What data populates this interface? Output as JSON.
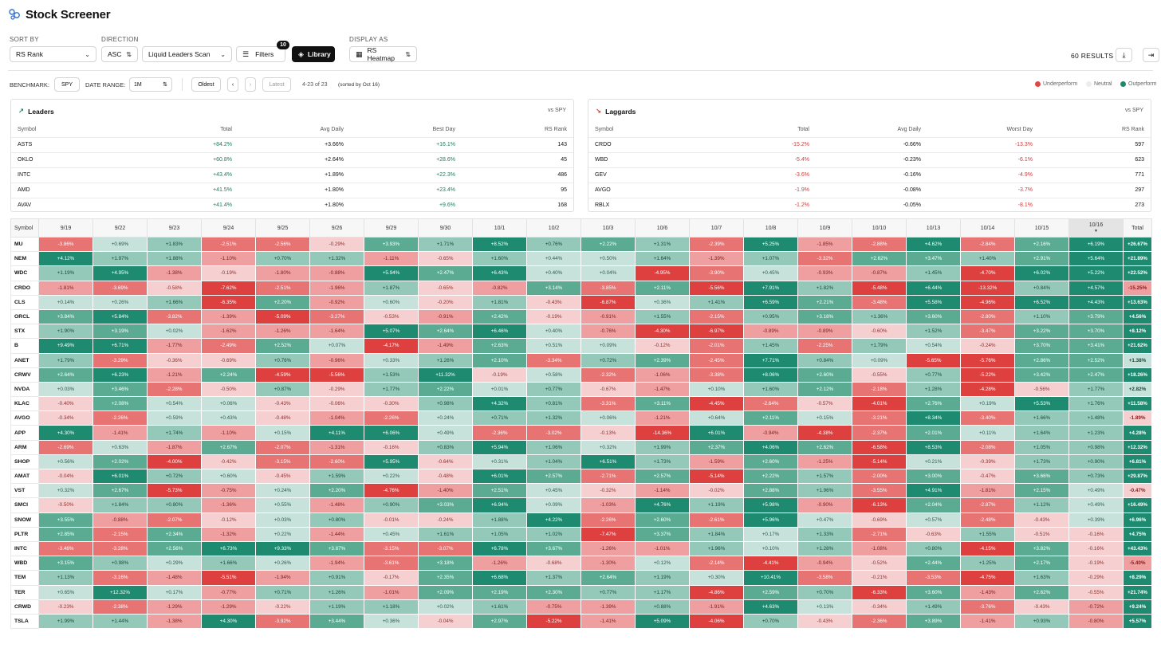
{
  "app": {
    "title": "Stock Screener"
  },
  "controls": {
    "sort_by_label": "SORT BY",
    "sort_by_value": "RS Rank",
    "direction_label": "DIRECTION",
    "direction_value": "ASC",
    "scan_value": "Liquid Leaders Scan",
    "filters_label": "Filters",
    "filters_count": "10",
    "library_label": "Library",
    "display_as_label": "DISPLAY AS",
    "display_as_value": "RS Heatmap",
    "results": "60 RESULTS"
  },
  "subbar": {
    "benchmark_label": "BENCHMARK:",
    "benchmark_value": "SPY",
    "date_range_label": "DATE RANGE:",
    "date_range_value": "1M",
    "oldest": "Oldest",
    "latest": "Latest",
    "range_text": "4-23 of 23",
    "sorted_text": "(sorted by Oct 16)"
  },
  "legend": {
    "under": "Underperform",
    "neutral": "Neutral",
    "out": "Outperform",
    "colors": {
      "under": "#e04848",
      "neutral": "#ececec",
      "out": "#1d8a6e"
    }
  },
  "leaders": {
    "title": "Leaders",
    "vs": "vs SPY",
    "columns": [
      "Symbol",
      "Total",
      "Avg Daily",
      "Best Day",
      "RS Rank"
    ],
    "rows": [
      [
        "ASTS",
        "+84.2%",
        "+3.66%",
        "+16.1%",
        "143"
      ],
      [
        "OKLO",
        "+60.8%",
        "+2.64%",
        "+28.6%",
        "45"
      ],
      [
        "INTC",
        "+43.4%",
        "+1.89%",
        "+22.3%",
        "486"
      ],
      [
        "AMD",
        "+41.5%",
        "+1.80%",
        "+23.4%",
        "95"
      ],
      [
        "AVAV",
        "+41.4%",
        "+1.80%",
        "+9.6%",
        "168"
      ]
    ]
  },
  "laggards": {
    "title": "Laggards",
    "vs": "vs SPY",
    "columns": [
      "Symbol",
      "Total",
      "Avg Daily",
      "Worst Day",
      "RS Rank"
    ],
    "rows": [
      [
        "CRDO",
        "-15.2%",
        "-0.66%",
        "-13.3%",
        "597"
      ],
      [
        "WBD",
        "-5.4%",
        "-0.23%",
        "-6.1%",
        "623"
      ],
      [
        "GEV",
        "-3.6%",
        "-0.16%",
        "-4.9%",
        "771"
      ],
      [
        "AVGO",
        "-1.9%",
        "-0.08%",
        "-3.7%",
        "297"
      ],
      [
        "RBLX",
        "-1.2%",
        "-0.05%",
        "-8.1%",
        "273"
      ]
    ]
  },
  "heatmap": {
    "symbol_header": "Symbol",
    "total_header": "Total",
    "dates": [
      "9/19",
      "9/22",
      "9/23",
      "9/24",
      "9/25",
      "9/26",
      "9/29",
      "9/30",
      "10/1",
      "10/2",
      "10/3",
      "10/6",
      "10/7",
      "10/8",
      "10/9",
      "10/10",
      "10/13",
      "10/14",
      "10/15",
      "10/16"
    ],
    "selected_date": "10/16",
    "rows": [
      {
        "sym": "MU",
        "vals": [
          "-3.86%",
          "+0.69%",
          "+1.83%",
          "-2.51%",
          "-2.56%",
          "-0.29%",
          "+3.93%",
          "+1.71%",
          "+8.52%",
          "+0.76%",
          "+2.22%",
          "+1.31%",
          "-2.39%",
          "+5.25%",
          "-1.85%",
          "-2.88%",
          "+4.62%",
          "-2.84%",
          "+2.16%",
          "+6.19%"
        ],
        "total": "+26.67%"
      },
      {
        "sym": "NEM",
        "vals": [
          "+4.12%",
          "+1.97%",
          "+1.88%",
          "-1.10%",
          "+0.70%",
          "+1.32%",
          "-1.11%",
          "-0.65%",
          "+1.60%",
          "+0.44%",
          "+0.50%",
          "+1.64%",
          "-1.39%",
          "+1.07%",
          "-3.32%",
          "+2.62%",
          "+3.47%",
          "+1.40%",
          "+2.91%",
          "+5.64%"
        ],
        "total": "+21.89%"
      },
      {
        "sym": "WDC",
        "vals": [
          "+1.19%",
          "+4.95%",
          "-1.38%",
          "-0.19%",
          "-1.80%",
          "-0.88%",
          "+5.94%",
          "+2.47%",
          "+6.43%",
          "+0.40%",
          "+0.04%",
          "-4.95%",
          "-3.90%",
          "+0.45%",
          "-0.93%",
          "-0.87%",
          "+1.45%",
          "-4.70%",
          "+6.02%",
          "+5.22%"
        ],
        "total": "+22.52%"
      },
      {
        "sym": "CRDO",
        "vals": [
          "-1.81%",
          "-3.69%",
          "-0.58%",
          "-7.62%",
          "-2.51%",
          "-1.96%",
          "+1.87%",
          "-0.65%",
          "-0.82%",
          "+3.14%",
          "-3.85%",
          "+2.11%",
          "-5.56%",
          "+7.91%",
          "+1.82%",
          "-5.48%",
          "+6.44%",
          "-13.32%",
          "+0.84%",
          "+4.57%"
        ],
        "total": "-15.25%"
      },
      {
        "sym": "CLS",
        "vals": [
          "+0.14%",
          "+0.26%",
          "+1.66%",
          "-6.35%",
          "+2.20%",
          "-0.92%",
          "+0.60%",
          "-0.20%",
          "+1.81%",
          "-0.43%",
          "-6.87%",
          "+0.36%",
          "+1.41%",
          "+6.59%",
          "+2.21%",
          "-3.48%",
          "+5.58%",
          "-4.96%",
          "+6.52%",
          "+4.43%"
        ],
        "total": "+13.63%"
      },
      {
        "sym": "ORCL",
        "vals": [
          "+3.84%",
          "+5.84%",
          "-3.82%",
          "-1.39%",
          "-5.09%",
          "-3.27%",
          "-0.53%",
          "-0.91%",
          "+2.42%",
          "-0.19%",
          "-0.91%",
          "+1.55%",
          "-2.15%",
          "+0.95%",
          "+3.18%",
          "+1.36%",
          "+3.60%",
          "-2.80%",
          "+1.10%",
          "+3.79%"
        ],
        "total": "+4.56%"
      },
      {
        "sym": "STX",
        "vals": [
          "+1.90%",
          "+3.19%",
          "+0.02%",
          "-1.62%",
          "-1.26%",
          "-1.64%",
          "+5.07%",
          "+2.64%",
          "+6.46%",
          "+0.40%",
          "-0.76%",
          "-4.30%",
          "-6.97%",
          "-0.89%",
          "-0.89%",
          "-0.60%",
          "+1.52%",
          "-3.47%",
          "+3.22%",
          "+3.70%"
        ],
        "total": "+8.12%"
      },
      {
        "sym": "B",
        "vals": [
          "+9.49%",
          "+6.71%",
          "-1.77%",
          "-2.49%",
          "+2.52%",
          "+0.07%",
          "-4.17%",
          "-1.49%",
          "+2.63%",
          "+0.51%",
          "+0.09%",
          "-0.12%",
          "-2.01%",
          "+1.45%",
          "-2.25%",
          "+1.79%",
          "+0.54%",
          "-0.24%",
          "+3.70%",
          "+3.41%"
        ],
        "total": "+21.62%"
      },
      {
        "sym": "ANET",
        "vals": [
          "+1.79%",
          "-3.29%",
          "-0.36%",
          "-0.69%",
          "+0.76%",
          "-0.96%",
          "+0.33%",
          "+1.26%",
          "+2.10%",
          "-3.34%",
          "+0.72%",
          "+2.39%",
          "-2.45%",
          "+7.71%",
          "+0.84%",
          "+0.09%",
          "-5.65%",
          "-5.76%",
          "+2.86%",
          "+2.52%"
        ],
        "total": "+1.38%"
      },
      {
        "sym": "CRWV",
        "vals": [
          "+2.64%",
          "+6.23%",
          "-1.21%",
          "+2.24%",
          "-4.59%",
          "-5.56%",
          "+1.53%",
          "+11.32%",
          "-0.19%",
          "+0.58%",
          "-2.32%",
          "-1.06%",
          "-3.38%",
          "+8.06%",
          "+2.60%",
          "-0.55%",
          "+0.77%",
          "-5.22%",
          "+3.42%",
          "+2.47%"
        ],
        "total": "+18.26%"
      },
      {
        "sym": "NVDA",
        "vals": [
          "+0.03%",
          "+3.46%",
          "-2.28%",
          "-0.50%",
          "+0.87%",
          "-0.29%",
          "+1.77%",
          "+2.22%",
          "+0.01%",
          "+0.77%",
          "-0.67%",
          "-1.47%",
          "+0.10%",
          "+1.60%",
          "+2.12%",
          "-2.18%",
          "+1.28%",
          "-4.28%",
          "-0.56%",
          "+1.77%"
        ],
        "total": "+2.82%"
      },
      {
        "sym": "KLAC",
        "vals": [
          "-0.40%",
          "+2.08%",
          "+0.54%",
          "+0.06%",
          "-0.43%",
          "-0.06%",
          "-0.30%",
          "+0.98%",
          "+4.32%",
          "+0.81%",
          "-3.31%",
          "+3.11%",
          "-4.45%",
          "-2.64%",
          "-0.57%",
          "-4.01%",
          "+2.76%",
          "+0.19%",
          "+5.53%",
          "+1.76%"
        ],
        "total": "+11.58%"
      },
      {
        "sym": "AVGO",
        "vals": [
          "-0.34%",
          "-2.26%",
          "+0.59%",
          "+0.43%",
          "-0.48%",
          "-1.04%",
          "-2.26%",
          "+0.24%",
          "+0.71%",
          "+1.32%",
          "+0.06%",
          "-1.21%",
          "+0.64%",
          "+2.11%",
          "+0.15%",
          "-3.21%",
          "+8.34%",
          "-3.40%",
          "+1.66%",
          "+1.48%"
        ],
        "total": "-1.89%"
      },
      {
        "sym": "APP",
        "vals": [
          "+4.30%",
          "-1.41%",
          "+1.74%",
          "-1.10%",
          "+0.15%",
          "+4.11%",
          "+6.06%",
          "+0.49%",
          "-2.36%",
          "-3.02%",
          "-0.13%",
          "-14.36%",
          "+6.01%",
          "-0.94%",
          "-4.38%",
          "-2.37%",
          "+2.01%",
          "+0.11%",
          "+1.64%",
          "+1.23%"
        ],
        "total": "+4.28%"
      },
      {
        "sym": "ARM",
        "vals": [
          "-2.69%",
          "+0.63%",
          "-1.87%",
          "+2.67%",
          "-2.07%",
          "-1.31%",
          "-0.16%",
          "+0.83%",
          "+5.94%",
          "+1.06%",
          "+0.32%",
          "+1.99%",
          "+2.37%",
          "+4.06%",
          "+2.62%",
          "-6.58%",
          "+8.53%",
          "-2.08%",
          "+1.05%",
          "+0.98%"
        ],
        "total": "+12.32%"
      },
      {
        "sym": "SHOP",
        "vals": [
          "+0.56%",
          "+2.02%",
          "-4.00%",
          "-0.42%",
          "-3.15%",
          "-2.60%",
          "+5.95%",
          "-0.64%",
          "+0.31%",
          "+1.04%",
          "+6.51%",
          "+1.73%",
          "-1.59%",
          "+2.60%",
          "-1.25%",
          "-5.14%",
          "+0.21%",
          "-0.39%",
          "+1.73%",
          "+0.90%"
        ],
        "total": "+6.81%"
      },
      {
        "sym": "AMAT",
        "vals": [
          "-0.04%",
          "+6.01%",
          "+0.72%",
          "+0.60%",
          "-0.45%",
          "+1.59%",
          "+0.22%",
          "-0.48%",
          "+6.01%",
          "+2.57%",
          "-2.71%",
          "+2.57%",
          "-5.14%",
          "+2.22%",
          "+1.57%",
          "-2.00%",
          "+3.00%",
          "-0.47%",
          "+3.66%",
          "+0.73%"
        ],
        "total": "+29.87%"
      },
      {
        "sym": "VST",
        "vals": [
          "+0.32%",
          "+2.67%",
          "-5.73%",
          "-0.75%",
          "+0.24%",
          "+2.20%",
          "-4.76%",
          "-1.40%",
          "+2.51%",
          "+0.45%",
          "-0.32%",
          "-1.14%",
          "-0.02%",
          "+2.88%",
          "+1.96%",
          "-3.55%",
          "+4.91%",
          "-1.81%",
          "+2.15%",
          "+0.49%"
        ],
        "total": "-0.47%"
      },
      {
        "sym": "SMCI",
        "vals": [
          "-0.50%",
          "+1.84%",
          "+0.80%",
          "-1.36%",
          "+0.55%",
          "-1.48%",
          "+0.90%",
          "+3.03%",
          "+6.94%",
          "+0.09%",
          "-1.03%",
          "+4.76%",
          "+1.19%",
          "+5.98%",
          "-0.90%",
          "-6.13%",
          "+2.04%",
          "-2.87%",
          "+1.12%",
          "+0.49%"
        ],
        "total": "+16.49%"
      },
      {
        "sym": "SNOW",
        "vals": [
          "+3.55%",
          "-0.88%",
          "-2.07%",
          "-0.12%",
          "+0.03%",
          "+0.80%",
          "-0.01%",
          "-0.24%",
          "+1.88%",
          "+4.22%",
          "-2.26%",
          "+2.60%",
          "-2.61%",
          "+5.96%",
          "+0.47%",
          "-0.69%",
          "+0.57%",
          "-2.48%",
          "-0.43%",
          "+0.39%"
        ],
        "total": "+6.96%"
      },
      {
        "sym": "PLTR",
        "vals": [
          "+2.85%",
          "-2.15%",
          "+2.34%",
          "-1.32%",
          "+0.22%",
          "-1.44%",
          "+0.45%",
          "+1.61%",
          "+1.05%",
          "+1.02%",
          "-7.47%",
          "+3.37%",
          "+1.84%",
          "+0.17%",
          "+1.33%",
          "-2.71%",
          "-0.63%",
          "+1.55%",
          "-0.51%",
          "-0.16%"
        ],
        "total": "+4.75%"
      },
      {
        "sym": "INTC",
        "vals": [
          "-3.46%",
          "-3.28%",
          "+2.56%",
          "+6.73%",
          "+9.33%",
          "+3.87%",
          "-3.15%",
          "-3.07%",
          "+6.78%",
          "+3.67%",
          "-1.26%",
          "-1.01%",
          "+1.96%",
          "+0.10%",
          "+1.28%",
          "-1.08%",
          "+0.80%",
          "-4.15%",
          "+3.82%",
          "-0.16%"
        ],
        "total": "+43.43%"
      },
      {
        "sym": "WBD",
        "vals": [
          "+3.15%",
          "+0.98%",
          "+0.29%",
          "+1.66%",
          "+0.26%",
          "-1.94%",
          "-3.61%",
          "+3.18%",
          "-1.26%",
          "-0.68%",
          "-1.30%",
          "+0.12%",
          "-2.14%",
          "-4.41%",
          "-0.94%",
          "-0.52%",
          "+2.44%",
          "+1.25%",
          "+2.17%",
          "-0.19%"
        ],
        "total": "-5.40%"
      },
      {
        "sym": "TEM",
        "vals": [
          "+1.13%",
          "-3.16%",
          "-1.48%",
          "-5.51%",
          "-1.94%",
          "+0.91%",
          "-0.17%",
          "+2.35%",
          "+6.68%",
          "+1.37%",
          "+2.64%",
          "+1.19%",
          "+0.30%",
          "+10.41%",
          "-3.58%",
          "-0.21%",
          "-3.53%",
          "-4.75%",
          "+1.63%",
          "-0.29%"
        ],
        "total": "+8.29%"
      },
      {
        "sym": "TER",
        "vals": [
          "+0.65%",
          "+12.32%",
          "+0.17%",
          "-0.77%",
          "+0.71%",
          "+1.26%",
          "-1.01%",
          "+2.09%",
          "+2.19%",
          "+2.30%",
          "+0.77%",
          "+1.17%",
          "-4.86%",
          "+2.59%",
          "+0.70%",
          "-6.33%",
          "+3.60%",
          "-1.43%",
          "+2.62%",
          "-0.55%"
        ],
        "total": "+21.74%"
      },
      {
        "sym": "CRWD",
        "vals": [
          "-0.23%",
          "-2.38%",
          "-1.29%",
          "-1.29%",
          "-0.22%",
          "+1.19%",
          "+1.18%",
          "+0.02%",
          "+1.61%",
          "-0.75%",
          "-1.39%",
          "+0.88%",
          "-1.91%",
          "+4.63%",
          "+0.13%",
          "-0.34%",
          "+1.49%",
          "-3.76%",
          "-0.43%",
          "-0.72%"
        ],
        "total": "+9.24%"
      },
      {
        "sym": "TSLA",
        "vals": [
          "+1.99%",
          "+1.44%",
          "-1.38%",
          "+4.30%",
          "-3.92%",
          "+3.44%",
          "+0.36%",
          "-0.04%",
          "+2.97%",
          "-5.22%",
          "-1.41%",
          "+5.09%",
          "-4.06%",
          "+0.70%",
          "-0.43%",
          "-2.36%",
          "+3.89%",
          "-1.41%",
          "+0.93%",
          "-0.80%"
        ],
        "total": "+5.57%"
      }
    ]
  }
}
